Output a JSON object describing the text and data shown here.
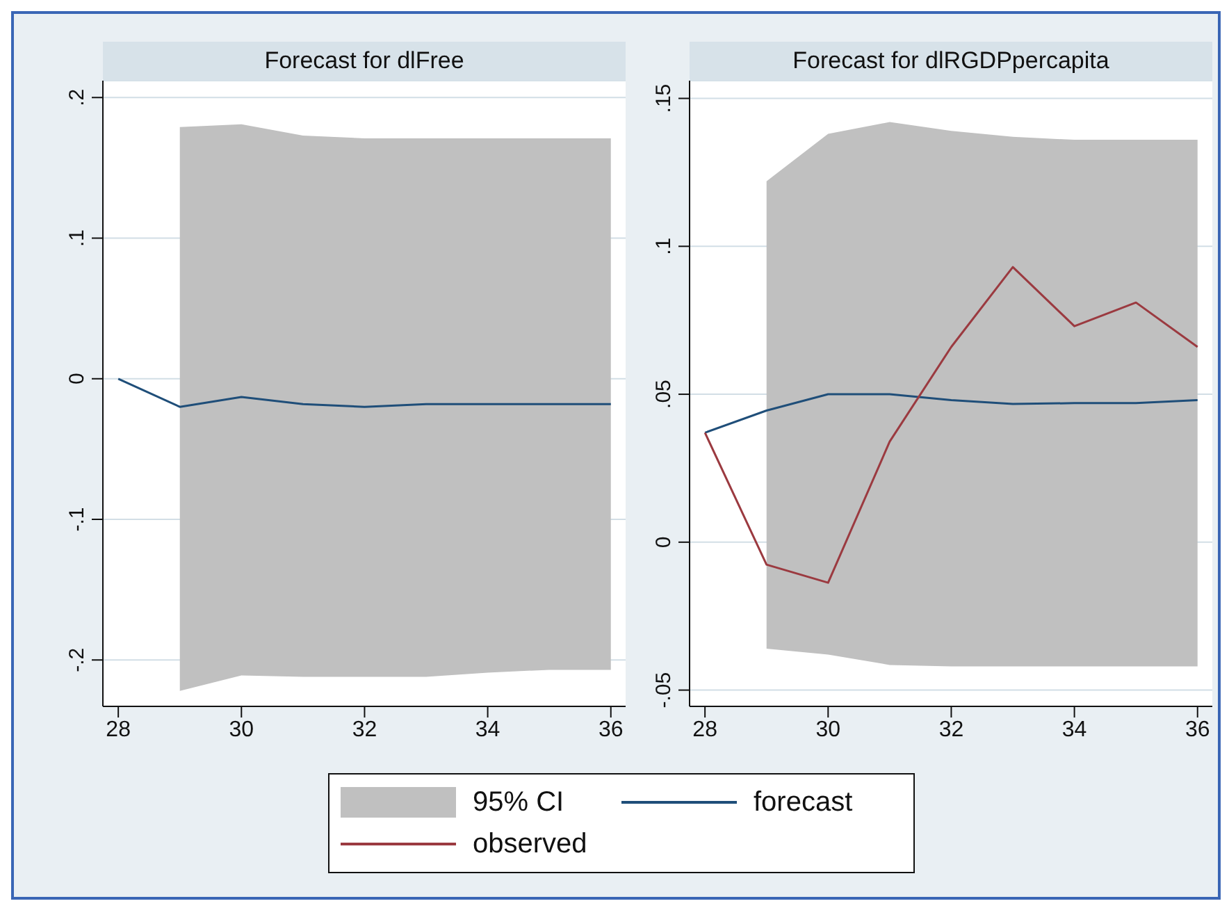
{
  "chart_data": [
    {
      "type": "line",
      "title": "Forecast for dlFree",
      "x": [
        28,
        29,
        30,
        31,
        32,
        33,
        34,
        35,
        36
      ],
      "xlim": [
        27.75,
        36.24
      ],
      "xticks": [
        28,
        30,
        32,
        34,
        36
      ],
      "ylim": [
        -0.233,
        0.212
      ],
      "yticks": [
        {
          "value": -0.2,
          "label": "-.2"
        },
        {
          "value": -0.1,
          "label": "-.1"
        },
        0,
        {
          "value": 0.1,
          "label": ".1"
        },
        {
          "value": 0.2,
          "label": ".2"
        }
      ],
      "grid": "y",
      "marker": "none",
      "series": [
        {
          "color": "#1f4e79",
          "values": [
            0,
            -0.02,
            -0.013,
            -0.018,
            -0.02,
            -0.018,
            -0.018,
            -0.018,
            -0.018
          ],
          "lower": [
            null,
            -0.222,
            -0.211,
            -0.212,
            -0.212,
            -0.212,
            -0.209,
            -0.207,
            -0.207
          ],
          "upper": [
            null,
            0.179,
            0.181,
            0.173,
            0.171,
            0.171,
            0.171,
            0.171,
            0.171
          ]
        }
      ]
    },
    {
      "type": "line",
      "title": "Forecast for dlRGDPpercapita",
      "x": [
        28,
        29,
        30,
        31,
        32,
        33,
        34,
        35,
        36
      ],
      "xlim": [
        27.75,
        36.24
      ],
      "xticks": [
        28,
        30,
        32,
        34,
        36
      ],
      "ylim": [
        -0.0555,
        0.156
      ],
      "yticks": [
        {
          "value": -0.05,
          "label": "-.05"
        },
        0,
        {
          "value": 0.05,
          "label": ".05"
        },
        {
          "value": 0.1,
          "label": ".1"
        },
        {
          "value": 0.15,
          "label": ".15"
        }
      ],
      "grid": "y",
      "legend": "bottom",
      "marker": "none",
      "annotations": [
        "95% CI"
      ],
      "series": [
        {
          "name": "forecast",
          "color": "#1f4e79",
          "values": [
            0.037,
            0.0445,
            0.05,
            0.05,
            0.048,
            0.0467,
            0.047,
            0.047,
            0.048
          ],
          "lower": [
            null,
            -0.036,
            -0.038,
            -0.0415,
            -0.042,
            -0.042,
            -0.042,
            -0.042,
            -0.042
          ],
          "upper": [
            null,
            0.122,
            0.138,
            0.142,
            0.139,
            0.137,
            0.136,
            0.136,
            0.136
          ]
        },
        {
          "name": "observed",
          "color": "#9b3a40",
          "values": [
            0.037,
            -0.0076,
            -0.0137,
            0.034,
            0.066,
            0.093,
            0.073,
            0.081,
            0.066
          ]
        }
      ]
    }
  ]
}
